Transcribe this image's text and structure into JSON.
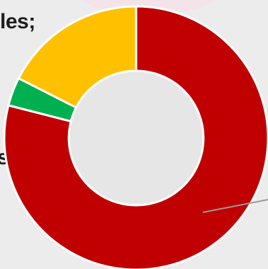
{
  "fragments": {
    "top_text": "les;",
    "mid_text": "s"
  },
  "chart_data": {
    "type": "pie",
    "donut": true,
    "title": "",
    "legend": "none",
    "categories": [
      "red",
      "green",
      "yellow"
    ],
    "values": [
      79,
      3.5,
      17.5
    ],
    "colors": [
      "#c00000",
      "#00b050",
      "#ffc000"
    ],
    "hole_color": "#e6e6e6",
    "separator_color": "#ffffff",
    "leader_line_color": "#9a9a9a"
  }
}
